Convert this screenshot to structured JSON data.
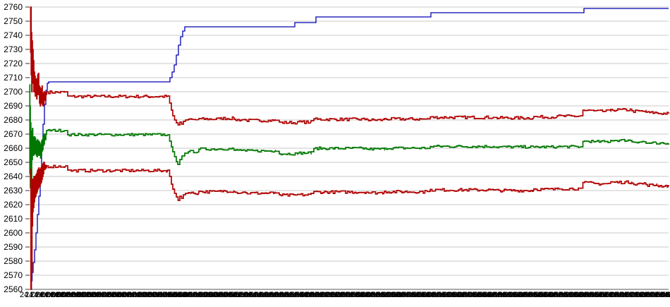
{
  "chart_data": {
    "type": "line",
    "title": "",
    "xlabel": "",
    "ylabel": "",
    "legend": "none",
    "grid": "horizontal",
    "y_axis": {
      "min": 2560,
      "max": 2760,
      "step": 10,
      "tick_labels": [
        "2760",
        "2750",
        "2740",
        "2730",
        "2720",
        "2710",
        "2700",
        "2690",
        "2680",
        "2670",
        "2660",
        "2650",
        "2640",
        "2630",
        "2620",
        "2610",
        "2600",
        "2590",
        "2580",
        "2570",
        "2560"
      ]
    },
    "x_axis": {
      "labels_overlapping_illegible": true,
      "synthetic_label_day": "24.Dec",
      "synthetic_label_start_hour": 8,
      "synthetic_label_step_min": 5,
      "tick_count": 127,
      "tick_spacing_px": 7.2
    },
    "plot": {
      "x_left": 42,
      "x_right": 948,
      "y_top": 10,
      "y_bottom": 410,
      "grid_color": "#c9c9c9",
      "axis_color": "#555555",
      "background": "#ffffff"
    },
    "series": [
      {
        "name": "blue-step-line",
        "color": "#0000b0",
        "width": 1.3,
        "noise": 0,
        "noise_bias": 0.5,
        "points": [
          [
            44,
            2560
          ],
          [
            44.6,
            2566
          ],
          [
            45.5,
            2572
          ],
          [
            47,
            2579
          ],
          [
            49,
            2588
          ],
          [
            51,
            2600
          ],
          [
            53,
            2613
          ],
          [
            55,
            2626
          ],
          [
            57,
            2641
          ],
          [
            59,
            2659
          ],
          [
            61,
            2677
          ],
          [
            63,
            2691
          ],
          [
            65,
            2701
          ],
          [
            67,
            2706
          ],
          [
            69,
            2707
          ],
          [
            238,
            2707
          ],
          [
            241,
            2710
          ],
          [
            244,
            2714
          ],
          [
            247,
            2719
          ],
          [
            250,
            2726
          ],
          [
            253,
            2733
          ],
          [
            256,
            2739
          ],
          [
            259,
            2743
          ],
          [
            262,
            2746
          ],
          [
            414,
            2746
          ],
          [
            418,
            2749
          ],
          [
            444,
            2749
          ],
          [
            448,
            2753
          ],
          [
            607,
            2753
          ],
          [
            611,
            2756
          ],
          [
            824,
            2756
          ],
          [
            828,
            2759
          ],
          [
            948,
            2759
          ]
        ]
      },
      {
        "name": "upper-red-line",
        "color": "#b00000",
        "width": 1.7,
        "noise": 2.0,
        "noise_bias": 0.68,
        "points": [
          [
            43,
            2760
          ],
          [
            43.4,
            2728
          ],
          [
            43.8,
            2760
          ],
          [
            44.2,
            2712
          ],
          [
            44.6,
            2742
          ],
          [
            45,
            2700
          ],
          [
            45.5,
            2736
          ],
          [
            46,
            2714
          ],
          [
            46.5,
            2730
          ],
          [
            47,
            2706
          ],
          [
            47.5,
            2722
          ],
          [
            48,
            2700
          ],
          [
            48.5,
            2714
          ],
          [
            49,
            2703
          ],
          [
            49.5,
            2711
          ],
          [
            50,
            2697
          ],
          [
            50.5,
            2707
          ],
          [
            51,
            2699
          ],
          [
            51.5,
            2709
          ],
          [
            52,
            2695
          ],
          [
            52.5,
            2706
          ],
          [
            53,
            2698
          ],
          [
            53.5,
            2712
          ],
          [
            54,
            2701
          ],
          [
            54.5,
            2713
          ],
          [
            55,
            2698
          ],
          [
            55.5,
            2704
          ],
          [
            56,
            2692
          ],
          [
            56.5,
            2703
          ],
          [
            57,
            2690
          ],
          [
            57.5,
            2698
          ],
          [
            58,
            2692
          ],
          [
            58.5,
            2702
          ],
          [
            59,
            2695
          ],
          [
            59.5,
            2704
          ],
          [
            60,
            2691
          ],
          [
            60.5,
            2699
          ],
          [
            61,
            2690
          ],
          [
            61.5,
            2696
          ],
          [
            62,
            2691
          ],
          [
            62.5,
            2700
          ],
          [
            63,
            2694
          ],
          [
            63.5,
            2699
          ],
          [
            64,
            2694
          ],
          [
            65,
            2698
          ],
          [
            66,
            2700
          ],
          [
            93,
            2700
          ],
          [
            96,
            2697
          ],
          [
            238,
            2697
          ],
          [
            240.5,
            2692
          ],
          [
            243,
            2687
          ],
          [
            245,
            2683
          ],
          [
            247.5,
            2680
          ],
          [
            250,
            2678
          ],
          [
            252.5,
            2676.5
          ],
          [
            255,
            2678.5
          ],
          [
            257.5,
            2677
          ],
          [
            260,
            2679
          ],
          [
            263,
            2680
          ],
          [
            267,
            2680.5
          ],
          [
            282,
            2681
          ],
          [
            312,
            2681.5
          ],
          [
            332,
            2680.5
          ],
          [
            348,
            2680
          ],
          [
            390,
            2679.8
          ],
          [
            396,
            2678.5
          ],
          [
            422,
            2678.8
          ],
          [
            441,
            2679.5
          ],
          [
            445,
            2680.8
          ],
          [
            520,
            2680.3
          ],
          [
            545,
            2681
          ],
          [
            606,
            2680.8
          ],
          [
            610,
            2682.2
          ],
          [
            700,
            2681.8
          ],
          [
            757,
            2682.5
          ],
          [
            790,
            2683
          ],
          [
            823,
            2683
          ],
          [
            826.5,
            2687
          ],
          [
            842,
            2686.5
          ],
          [
            866,
            2687.5
          ],
          [
            896,
            2686.5
          ],
          [
            916,
            2685.5
          ],
          [
            931,
            2685
          ],
          [
            948,
            2685.4
          ]
        ]
      },
      {
        "name": "middle-green-line",
        "color": "#007800",
        "width": 1.7,
        "noise": 1.8,
        "noise_bias": 0.45,
        "points": [
          [
            42,
            2705
          ],
          [
            42.3,
            2642
          ],
          [
            42.6,
            2690
          ],
          [
            43,
            2632
          ],
          [
            43.4,
            2678
          ],
          [
            43.8,
            2648
          ],
          [
            44.2,
            2672
          ],
          [
            44.6,
            2638
          ],
          [
            45,
            2668
          ],
          [
            45.5,
            2652
          ],
          [
            46,
            2674
          ],
          [
            46.5,
            2656
          ],
          [
            47,
            2668
          ],
          [
            47.5,
            2655
          ],
          [
            48,
            2666
          ],
          [
            48.5,
            2656
          ],
          [
            49,
            2668
          ],
          [
            49.5,
            2659
          ],
          [
            50,
            2667
          ],
          [
            50.5,
            2656
          ],
          [
            51,
            2665
          ],
          [
            51.5,
            2655
          ],
          [
            52,
            2664
          ],
          [
            52.5,
            2654
          ],
          [
            53,
            2666
          ],
          [
            53.5,
            2656
          ],
          [
            54,
            2664
          ],
          [
            54.5,
            2655
          ],
          [
            55,
            2665
          ],
          [
            55.5,
            2657
          ],
          [
            56,
            2664
          ],
          [
            56.5,
            2655
          ],
          [
            57,
            2662
          ],
          [
            57.5,
            2653
          ],
          [
            58,
            2663
          ],
          [
            58.5,
            2655
          ],
          [
            59,
            2665
          ],
          [
            59.5,
            2658
          ],
          [
            60,
            2666
          ],
          [
            60.5,
            2659
          ],
          [
            61,
            2668
          ],
          [
            61.5,
            2662
          ],
          [
            62,
            2669
          ],
          [
            62.5,
            2663
          ],
          [
            63,
            2670
          ],
          [
            64,
            2666
          ],
          [
            65,
            2670
          ],
          [
            66,
            2672.5
          ],
          [
            93,
            2672.5
          ],
          [
            96,
            2669.5
          ],
          [
            238,
            2669.5
          ],
          [
            240.5,
            2665
          ],
          [
            243,
            2661
          ],
          [
            245,
            2657.5
          ],
          [
            247.5,
            2654
          ],
          [
            250,
            2650.5
          ],
          [
            252,
            2648.5
          ],
          [
            255,
            2652
          ],
          [
            258,
            2654.5
          ],
          [
            262,
            2656.5
          ],
          [
            267,
            2657.5
          ],
          [
            282,
            2659.3
          ],
          [
            312,
            2659.5
          ],
          [
            332,
            2658.5
          ],
          [
            348,
            2658
          ],
          [
            390,
            2657.8
          ],
          [
            396,
            2656
          ],
          [
            422,
            2656.5
          ],
          [
            441,
            2657.5
          ],
          [
            445,
            2659.8
          ],
          [
            520,
            2659.3
          ],
          [
            545,
            2660
          ],
          [
            606,
            2659.8
          ],
          [
            610,
            2661.2
          ],
          [
            700,
            2660.8
          ],
          [
            757,
            2660.8
          ],
          [
            790,
            2661
          ],
          [
            823,
            2661
          ],
          [
            826.5,
            2664.8
          ],
          [
            842,
            2664.5
          ],
          [
            866,
            2665.5
          ],
          [
            896,
            2664.5
          ],
          [
            916,
            2663.5
          ],
          [
            931,
            2663
          ],
          [
            948,
            2663.5
          ]
        ]
      },
      {
        "name": "lower-red-line",
        "color": "#b00000",
        "width": 1.7,
        "noise": 2.0,
        "noise_bias": 0.68,
        "points": [
          [
            43.5,
            2560
          ],
          [
            43.8,
            2645
          ],
          [
            44.1,
            2560
          ],
          [
            44.5,
            2638
          ],
          [
            45,
            2572
          ],
          [
            45.4,
            2632
          ],
          [
            45.8,
            2605
          ],
          [
            46.2,
            2638
          ],
          [
            46.6,
            2615
          ],
          [
            47,
            2636
          ],
          [
            47.5,
            2618
          ],
          [
            48,
            2640
          ],
          [
            48.5,
            2622
          ],
          [
            49,
            2638
          ],
          [
            49.5,
            2625
          ],
          [
            50,
            2640
          ],
          [
            50.5,
            2626
          ],
          [
            51,
            2641
          ],
          [
            51.5,
            2628
          ],
          [
            52,
            2642
          ],
          [
            52.5,
            2629
          ],
          [
            53,
            2644
          ],
          [
            53.5,
            2631
          ],
          [
            54,
            2645
          ],
          [
            54.5,
            2632
          ],
          [
            55,
            2646
          ],
          [
            55.5,
            2634
          ],
          [
            56,
            2645
          ],
          [
            56.5,
            2633
          ],
          [
            57,
            2644
          ],
          [
            57.5,
            2635
          ],
          [
            58,
            2646
          ],
          [
            58.5,
            2636
          ],
          [
            59,
            2647
          ],
          [
            59.5,
            2638
          ],
          [
            60,
            2648
          ],
          [
            60.5,
            2640
          ],
          [
            61,
            2649
          ],
          [
            61.5,
            2642
          ],
          [
            62,
            2650
          ],
          [
            63,
            2645
          ],
          [
            64,
            2648
          ],
          [
            65,
            2646
          ],
          [
            66,
            2647.5
          ],
          [
            93,
            2647.5
          ],
          [
            96,
            2644.5
          ],
          [
            238,
            2644.5
          ],
          [
            240.5,
            2640
          ],
          [
            243,
            2634.5
          ],
          [
            245,
            2631
          ],
          [
            247.5,
            2628
          ],
          [
            250,
            2625.5
          ],
          [
            252.5,
            2623
          ],
          [
            255,
            2626
          ],
          [
            257.5,
            2624.5
          ],
          [
            260,
            2627
          ],
          [
            263,
            2628
          ],
          [
            267,
            2628.5
          ],
          [
            282,
            2629.5
          ],
          [
            312,
            2630
          ],
          [
            332,
            2629
          ],
          [
            348,
            2628.5
          ],
          [
            390,
            2628.3
          ],
          [
            396,
            2627
          ],
          [
            422,
            2627.3
          ],
          [
            441,
            2628
          ],
          [
            445,
            2629.3
          ],
          [
            520,
            2628.8
          ],
          [
            545,
            2629.5
          ],
          [
            606,
            2629.3
          ],
          [
            610,
            2630.8
          ],
          [
            700,
            2630.4
          ],
          [
            757,
            2631.2
          ],
          [
            790,
            2631.7
          ],
          [
            823,
            2631.7
          ],
          [
            826.5,
            2635.7
          ],
          [
            842,
            2635.2
          ],
          [
            866,
            2636.2
          ],
          [
            896,
            2635.2
          ],
          [
            916,
            2634.2
          ],
          [
            931,
            2633.7
          ],
          [
            948,
            2634
          ]
        ]
      }
    ]
  }
}
